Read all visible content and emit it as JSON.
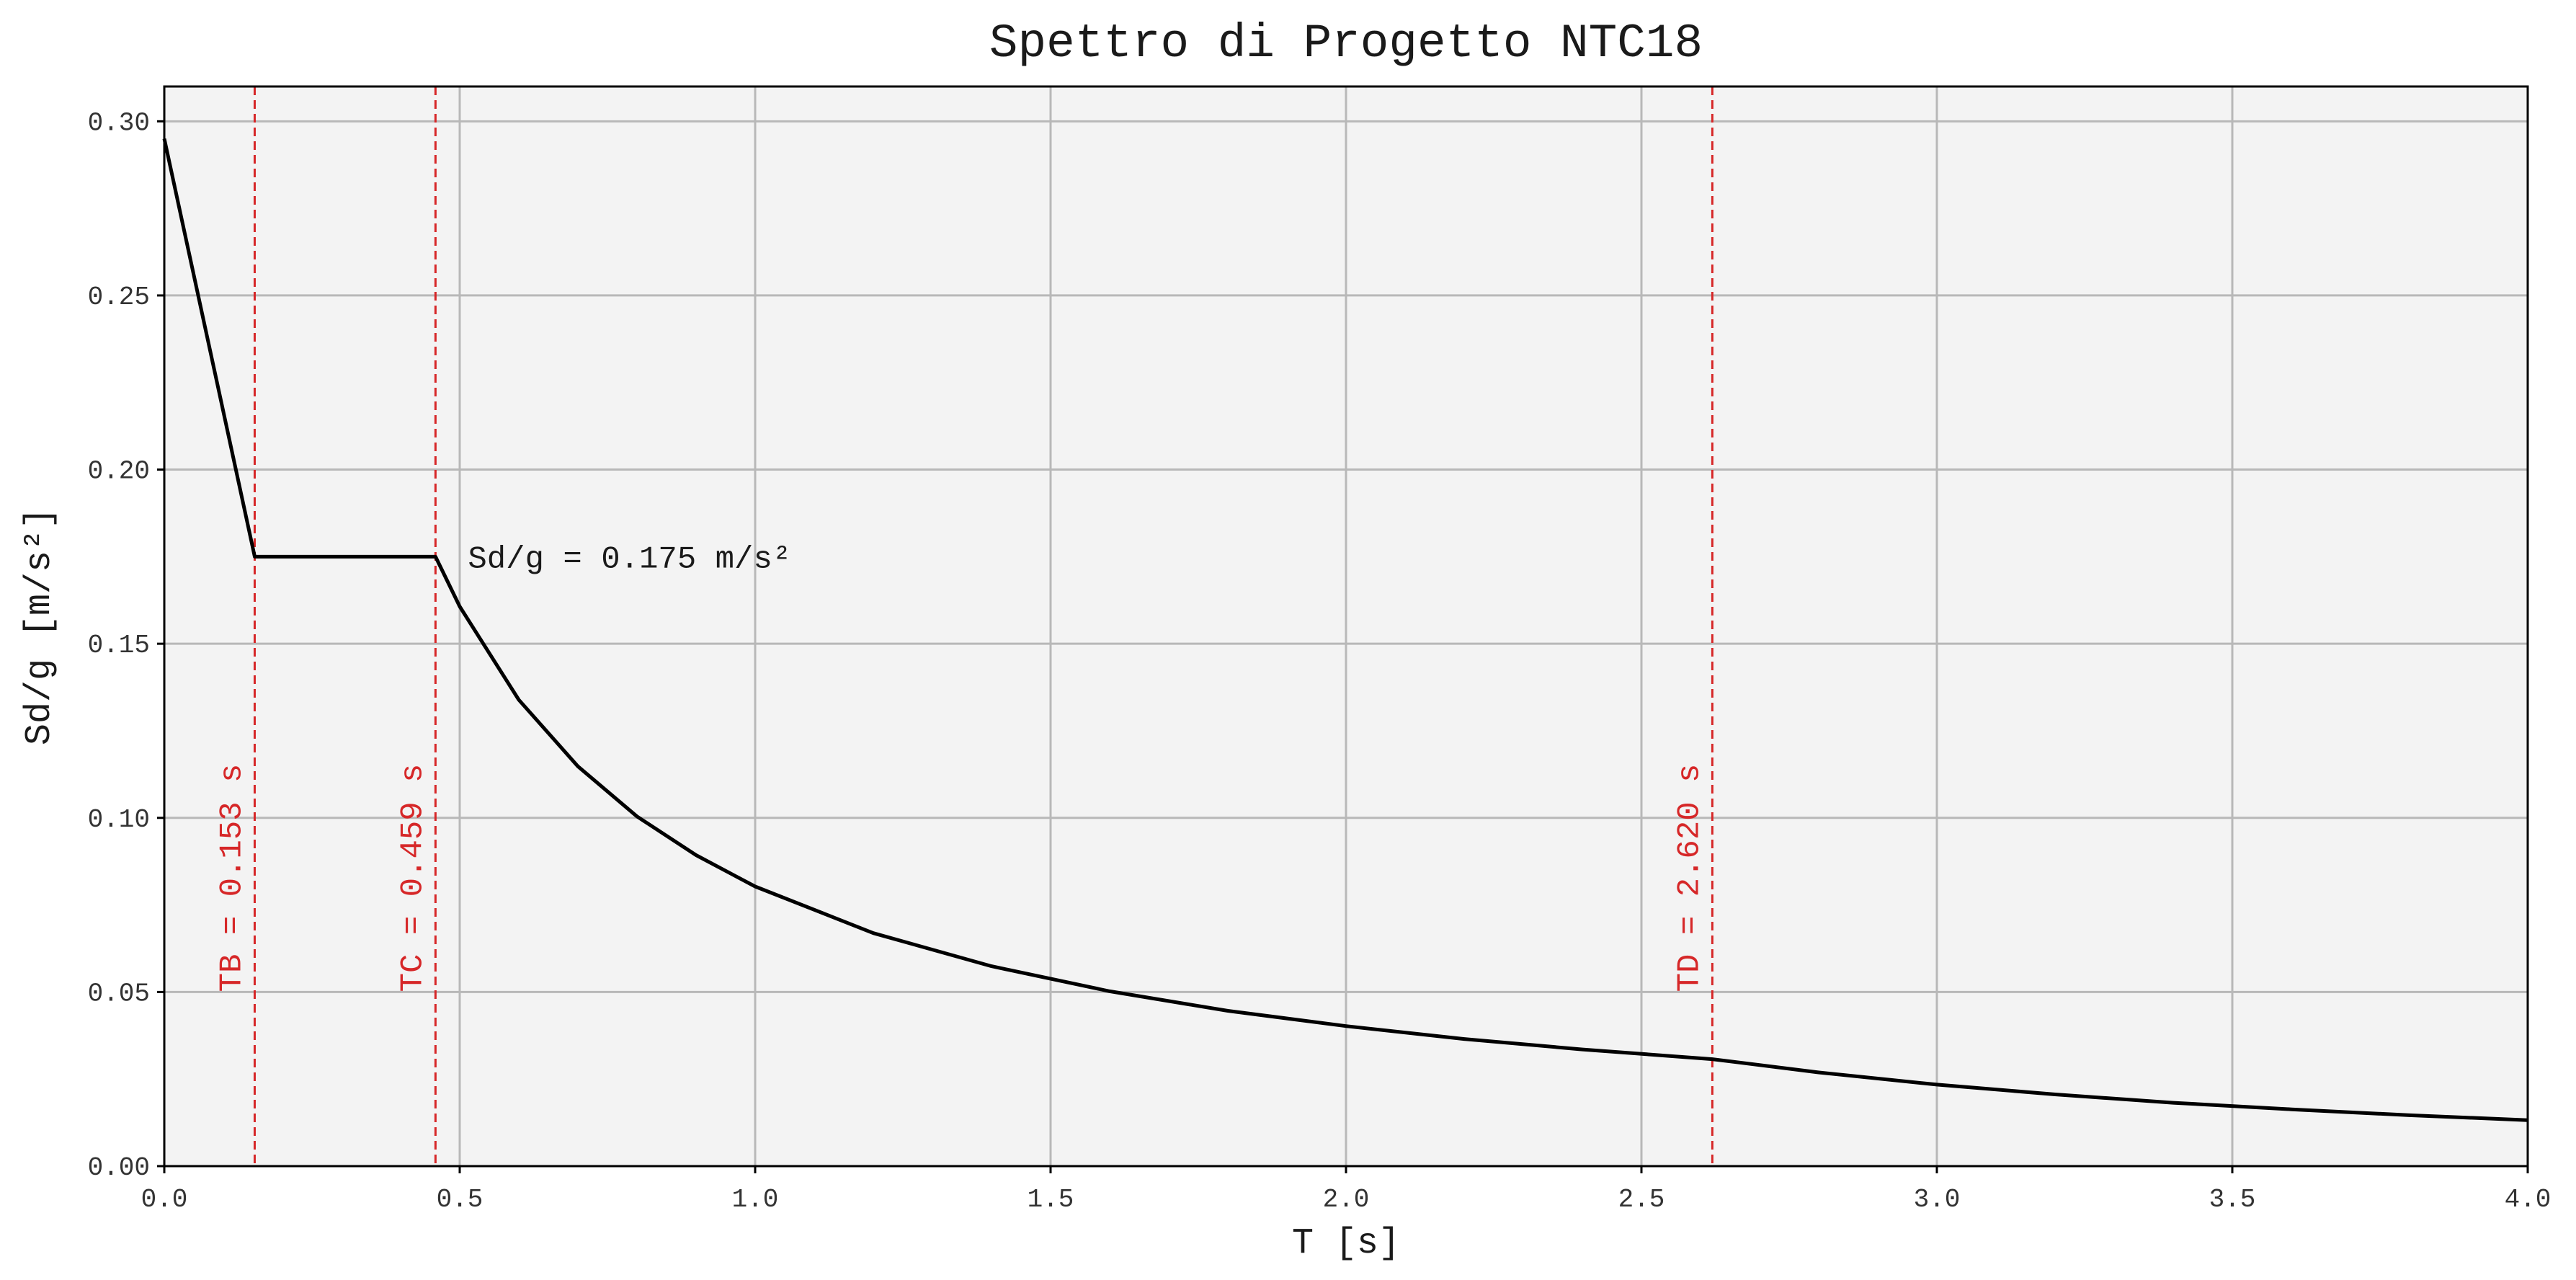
{
  "chart_data": {
    "type": "line",
    "title": "Spettro di Progetto NTC18",
    "xlabel": "T [s]",
    "ylabel": "Sd/g [m/s²]",
    "xlim": [
      0,
      4.0
    ],
    "ylim": [
      0,
      0.31
    ],
    "xticks": [
      "0.0",
      "0.5",
      "1.0",
      "1.5",
      "2.0",
      "2.5",
      "3.0",
      "3.5",
      "4.0"
    ],
    "yticks": [
      "0.00",
      "0.05",
      "0.10",
      "0.15",
      "0.20",
      "0.25",
      "0.30"
    ],
    "grid": true,
    "background_color": "#f3f3f3",
    "series": [
      {
        "color": "#000000",
        "points": [
          [
            0.0,
            0.295
          ],
          [
            0.153,
            0.175
          ],
          [
            0.459,
            0.175
          ],
          [
            0.5,
            0.1607
          ],
          [
            0.6,
            0.1339
          ],
          [
            0.7,
            0.1148
          ],
          [
            0.8,
            0.1004
          ],
          [
            0.9,
            0.0893
          ],
          [
            1.0,
            0.0803
          ],
          [
            1.2,
            0.0669
          ],
          [
            1.4,
            0.0574
          ],
          [
            1.6,
            0.0502
          ],
          [
            1.8,
            0.0446
          ],
          [
            2.0,
            0.0402
          ],
          [
            2.2,
            0.0365
          ],
          [
            2.4,
            0.0335
          ],
          [
            2.62,
            0.0307
          ],
          [
            2.8,
            0.0269
          ],
          [
            3.0,
            0.0234
          ],
          [
            3.2,
            0.0206
          ],
          [
            3.4,
            0.0182
          ],
          [
            3.6,
            0.0163
          ],
          [
            3.8,
            0.0146
          ],
          [
            4.0,
            0.0132
          ]
        ]
      }
    ],
    "vertical_lines": [
      {
        "x": 0.153,
        "label": "TB = 0.153 s",
        "color": "#d62728"
      },
      {
        "x": 0.459,
        "label": "TC = 0.459 s",
        "color": "#d62728"
      },
      {
        "x": 2.62,
        "label": "TD = 2.620 s",
        "color": "#d62728"
      }
    ],
    "annotation": {
      "x": 0.459,
      "y": 0.175,
      "text": "Sd/g = 0.175 m/s²"
    }
  }
}
